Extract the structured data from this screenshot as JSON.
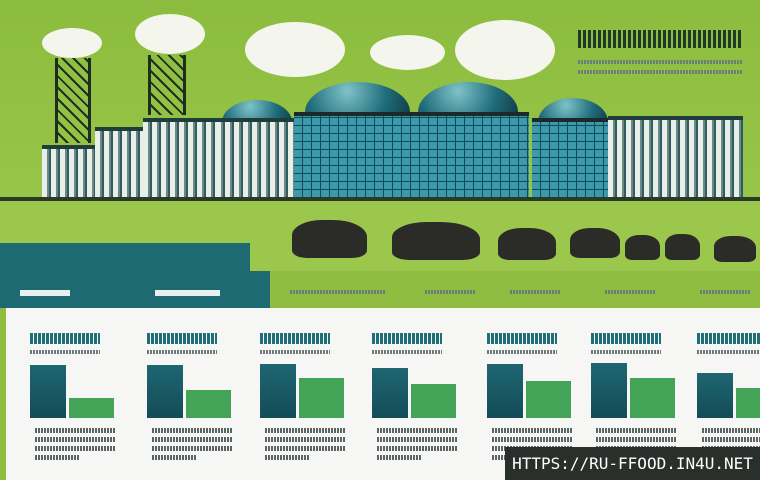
{
  "watermark": "HTTPS://RU-FFOOD.IN4U.NET",
  "colors": {
    "background_green": "#8fbd42",
    "teal": "#1d6a72",
    "dark_teal_bar": "#1e6672",
    "green_bar": "#43a457",
    "panel": "#f6f7f5"
  },
  "bar_panels": [
    {
      "values": [
        1.0,
        0.38
      ]
    },
    {
      "values": [
        1.0,
        0.53
      ]
    },
    {
      "values": [
        1.0,
        0.74
      ]
    },
    {
      "values": [
        1.0,
        0.68
      ]
    },
    {
      "values": [
        1.0,
        0.69
      ]
    },
    {
      "values": [
        1.0,
        0.73
      ]
    },
    {
      "values": [
        1.0,
        0.67
      ]
    }
  ]
}
